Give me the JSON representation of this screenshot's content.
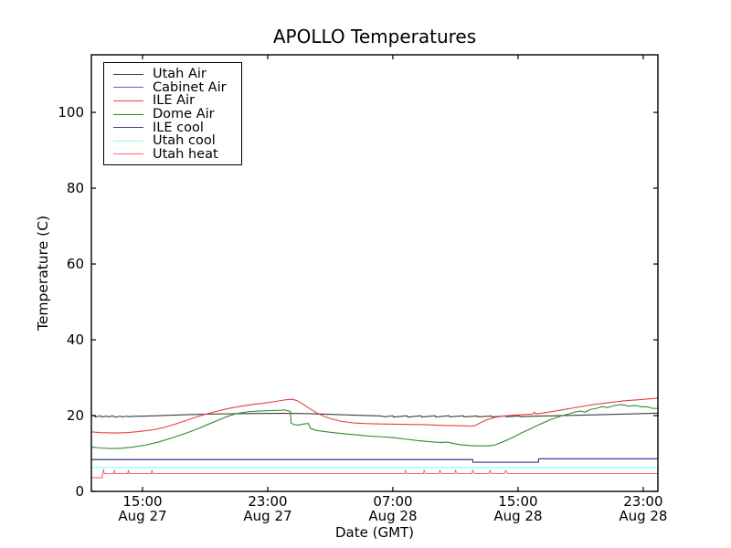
{
  "figure": {
    "background": "#ffffff"
  },
  "chart_data": {
    "type": "line",
    "title": "APOLLO Temperatures",
    "xlabel": "Date (GMT)",
    "ylabel": "Temperature (C)",
    "grid": false,
    "legend_position": "upper left",
    "x_unit": "hours since Aug 27 00:00 GMT",
    "xlim_hours": [
      11.73,
      47.94
    ],
    "ylim": [
      0,
      115.2
    ],
    "y_ticks": [
      0,
      20,
      40,
      60,
      80,
      100
    ],
    "x_ticks": [
      {
        "hour": 15,
        "time": "15:00",
        "date": "Aug 27"
      },
      {
        "hour": 23,
        "time": "23:00",
        "date": "Aug 27"
      },
      {
        "hour": 31,
        "time": "07:00",
        "date": "Aug 28"
      },
      {
        "hour": 39,
        "time": "15:00",
        "date": "Aug 28"
      },
      {
        "hour": 47,
        "time": "23:00",
        "date": "Aug 28"
      }
    ],
    "series": [
      {
        "name": "Utah Air",
        "color": "#3c3c3c",
        "points": [
          [
            11.73,
            19.9
          ],
          [
            11.9,
            20.0
          ],
          [
            12.0,
            19.6
          ],
          [
            12.3,
            19.95
          ],
          [
            12.4,
            19.6
          ],
          [
            12.7,
            19.9
          ],
          [
            12.8,
            19.65
          ],
          [
            13.1,
            19.9
          ],
          [
            13.3,
            19.6
          ],
          [
            13.6,
            19.85
          ],
          [
            13.7,
            19.65
          ],
          [
            14.0,
            19.85
          ],
          [
            14.1,
            19.7
          ],
          [
            14.4,
            19.8
          ],
          [
            14.6,
            19.8
          ],
          [
            15.5,
            19.9
          ],
          [
            16.5,
            20.05
          ],
          [
            18.0,
            20.25
          ],
          [
            19.5,
            20.4
          ],
          [
            21.0,
            20.5
          ],
          [
            22.5,
            20.55
          ],
          [
            24.0,
            20.6
          ],
          [
            25.0,
            20.55
          ],
          [
            26.0,
            20.45
          ],
          [
            27.5,
            20.25
          ],
          [
            29.0,
            20.05
          ],
          [
            30.2,
            19.9
          ],
          [
            30.5,
            19.7
          ],
          [
            31.0,
            19.95
          ],
          [
            31.05,
            19.6
          ],
          [
            31.9,
            19.95
          ],
          [
            31.95,
            19.6
          ],
          [
            32.8,
            19.95
          ],
          [
            32.85,
            19.62
          ],
          [
            33.7,
            19.95
          ],
          [
            33.75,
            19.62
          ],
          [
            34.6,
            19.95
          ],
          [
            34.65,
            19.65
          ],
          [
            35.5,
            19.95
          ],
          [
            35.55,
            19.65
          ],
          [
            36.4,
            19.9
          ],
          [
            36.45,
            19.65
          ],
          [
            37.3,
            19.9
          ],
          [
            37.35,
            19.65
          ],
          [
            38.2,
            19.9
          ],
          [
            38.25,
            19.68
          ],
          [
            39.1,
            19.9
          ],
          [
            39.15,
            19.7
          ],
          [
            40.0,
            19.85
          ],
          [
            41.5,
            19.95
          ],
          [
            43.0,
            20.1
          ],
          [
            44.5,
            20.25
          ],
          [
            46.0,
            20.4
          ],
          [
            47.3,
            20.55
          ],
          [
            47.94,
            20.65
          ]
        ]
      },
      {
        "name": "Cabinet Air",
        "color": "#5c5cf0",
        "points": [
          [
            11.73,
            8.4
          ],
          [
            36.1,
            8.4
          ],
          [
            36.12,
            7.7
          ],
          [
            40.3,
            7.7
          ],
          [
            40.32,
            8.6
          ],
          [
            47.94,
            8.6
          ]
        ]
      },
      {
        "name": "ILE Air",
        "color": "#e74040",
        "points": [
          [
            11.73,
            15.7
          ],
          [
            12.3,
            15.5
          ],
          [
            13.2,
            15.4
          ],
          [
            14.0,
            15.5
          ],
          [
            14.8,
            15.8
          ],
          [
            15.6,
            16.2
          ],
          [
            16.4,
            16.9
          ],
          [
            17.2,
            17.9
          ],
          [
            18.0,
            19.0
          ],
          [
            18.8,
            20.1
          ],
          [
            19.6,
            21.0
          ],
          [
            20.4,
            21.8
          ],
          [
            21.2,
            22.4
          ],
          [
            22.0,
            22.9
          ],
          [
            22.8,
            23.3
          ],
          [
            23.6,
            23.8
          ],
          [
            24.2,
            24.2
          ],
          [
            24.6,
            24.3
          ],
          [
            24.9,
            23.9
          ],
          [
            25.3,
            22.9
          ],
          [
            25.7,
            21.8
          ],
          [
            26.1,
            20.8
          ],
          [
            26.6,
            19.8
          ],
          [
            27.1,
            19.1
          ],
          [
            27.7,
            18.5
          ],
          [
            28.4,
            18.1
          ],
          [
            29.2,
            17.9
          ],
          [
            30.2,
            17.8
          ],
          [
            31.5,
            17.7
          ],
          [
            33.0,
            17.6
          ],
          [
            34.3,
            17.4
          ],
          [
            35.5,
            17.3
          ],
          [
            36.0,
            17.2
          ],
          [
            36.2,
            17.3
          ],
          [
            36.6,
            18.1
          ],
          [
            37.0,
            18.9
          ],
          [
            37.5,
            19.5
          ],
          [
            38.1,
            19.9
          ],
          [
            38.7,
            20.1
          ],
          [
            39.5,
            20.3
          ],
          [
            39.95,
            20.4
          ],
          [
            40.05,
            20.9
          ],
          [
            40.15,
            20.4
          ],
          [
            40.8,
            20.8
          ],
          [
            41.8,
            21.5
          ],
          [
            42.8,
            22.2
          ],
          [
            43.8,
            22.9
          ],
          [
            44.8,
            23.4
          ],
          [
            45.8,
            23.9
          ],
          [
            46.8,
            24.2
          ],
          [
            47.94,
            24.6
          ]
        ]
      },
      {
        "name": "Dome Air",
        "color": "#2f8b32",
        "points": [
          [
            11.73,
            11.7
          ],
          [
            12.3,
            11.45
          ],
          [
            13.0,
            11.3
          ],
          [
            13.7,
            11.4
          ],
          [
            14.4,
            11.7
          ],
          [
            15.2,
            12.2
          ],
          [
            16.0,
            13.0
          ],
          [
            16.8,
            14.0
          ],
          [
            17.6,
            15.1
          ],
          [
            18.4,
            16.3
          ],
          [
            19.2,
            17.7
          ],
          [
            19.9,
            18.9
          ],
          [
            20.5,
            19.9
          ],
          [
            21.1,
            20.6
          ],
          [
            21.7,
            21.0
          ],
          [
            22.4,
            21.2
          ],
          [
            23.1,
            21.3
          ],
          [
            23.8,
            21.4
          ],
          [
            24.1,
            21.5
          ],
          [
            24.35,
            21.2
          ],
          [
            24.45,
            21.1
          ],
          [
            24.5,
            18.0
          ],
          [
            24.7,
            17.6
          ],
          [
            25.0,
            17.5
          ],
          [
            25.3,
            17.8
          ],
          [
            25.6,
            17.9
          ],
          [
            25.75,
            16.6
          ],
          [
            26.1,
            16.1
          ],
          [
            26.6,
            15.8
          ],
          [
            27.2,
            15.5
          ],
          [
            27.9,
            15.2
          ],
          [
            28.7,
            14.9
          ],
          [
            29.5,
            14.6
          ],
          [
            30.3,
            14.4
          ],
          [
            31.0,
            14.2
          ],
          [
            31.8,
            13.8
          ],
          [
            32.6,
            13.4
          ],
          [
            33.4,
            13.1
          ],
          [
            34.1,
            12.9
          ],
          [
            34.5,
            13.0
          ],
          [
            34.8,
            12.7
          ],
          [
            35.3,
            12.3
          ],
          [
            35.9,
            12.1
          ],
          [
            36.5,
            12.0
          ],
          [
            37.1,
            12.0
          ],
          [
            37.5,
            12.2
          ],
          [
            38.0,
            13.0
          ],
          [
            38.6,
            14.1
          ],
          [
            39.2,
            15.4
          ],
          [
            39.8,
            16.5
          ],
          [
            40.4,
            17.7
          ],
          [
            41.0,
            18.8
          ],
          [
            41.6,
            19.7
          ],
          [
            42.2,
            20.4
          ],
          [
            42.7,
            21.0
          ],
          [
            43.0,
            21.2
          ],
          [
            43.3,
            20.9
          ],
          [
            43.6,
            21.6
          ],
          [
            44.0,
            21.9
          ],
          [
            44.4,
            22.4
          ],
          [
            44.7,
            22.1
          ],
          [
            45.1,
            22.6
          ],
          [
            45.6,
            22.9
          ],
          [
            46.1,
            22.5
          ],
          [
            46.5,
            22.7
          ],
          [
            46.9,
            22.3
          ],
          [
            47.3,
            22.3
          ],
          [
            47.6,
            21.9
          ],
          [
            47.94,
            21.9
          ]
        ]
      },
      {
        "name": "ILE cool",
        "color": "#42428e",
        "points": [
          [
            11.73,
            8.4
          ],
          [
            36.1,
            8.4
          ],
          [
            36.12,
            7.7
          ],
          [
            40.3,
            7.7
          ],
          [
            40.32,
            8.6
          ],
          [
            47.94,
            8.6
          ]
        ]
      },
      {
        "name": "Utah cool",
        "color": "#7cffff",
        "points": [
          [
            11.73,
            6.3
          ],
          [
            47.94,
            6.3
          ]
        ]
      },
      {
        "name": "Utah heat",
        "color": "#fb6a6a",
        "points": [
          [
            11.73,
            3.6
          ],
          [
            12.42,
            3.6
          ],
          [
            12.44,
            4.7
          ],
          [
            12.5,
            5.6
          ],
          [
            12.56,
            4.7
          ],
          [
            13.15,
            4.7
          ],
          [
            13.2,
            5.6
          ],
          [
            13.26,
            4.7
          ],
          [
            14.05,
            4.7
          ],
          [
            14.1,
            5.6
          ],
          [
            14.16,
            4.7
          ],
          [
            15.55,
            4.7
          ],
          [
            15.6,
            5.6
          ],
          [
            15.66,
            4.7
          ],
          [
            31.75,
            4.7
          ],
          [
            31.8,
            5.5
          ],
          [
            31.88,
            4.7
          ],
          [
            32.95,
            4.7
          ],
          [
            33.0,
            5.5
          ],
          [
            33.1,
            4.7
          ],
          [
            33.95,
            4.7
          ],
          [
            34.0,
            5.5
          ],
          [
            34.12,
            4.7
          ],
          [
            34.95,
            4.7
          ],
          [
            35.0,
            5.5
          ],
          [
            35.12,
            4.7
          ],
          [
            36.05,
            4.7
          ],
          [
            36.1,
            5.5
          ],
          [
            36.22,
            4.7
          ],
          [
            37.15,
            4.7
          ],
          [
            37.2,
            5.5
          ],
          [
            37.32,
            4.7
          ],
          [
            38.15,
            4.7
          ],
          [
            38.2,
            5.5
          ],
          [
            38.35,
            4.7
          ],
          [
            47.94,
            4.7
          ]
        ]
      }
    ]
  }
}
